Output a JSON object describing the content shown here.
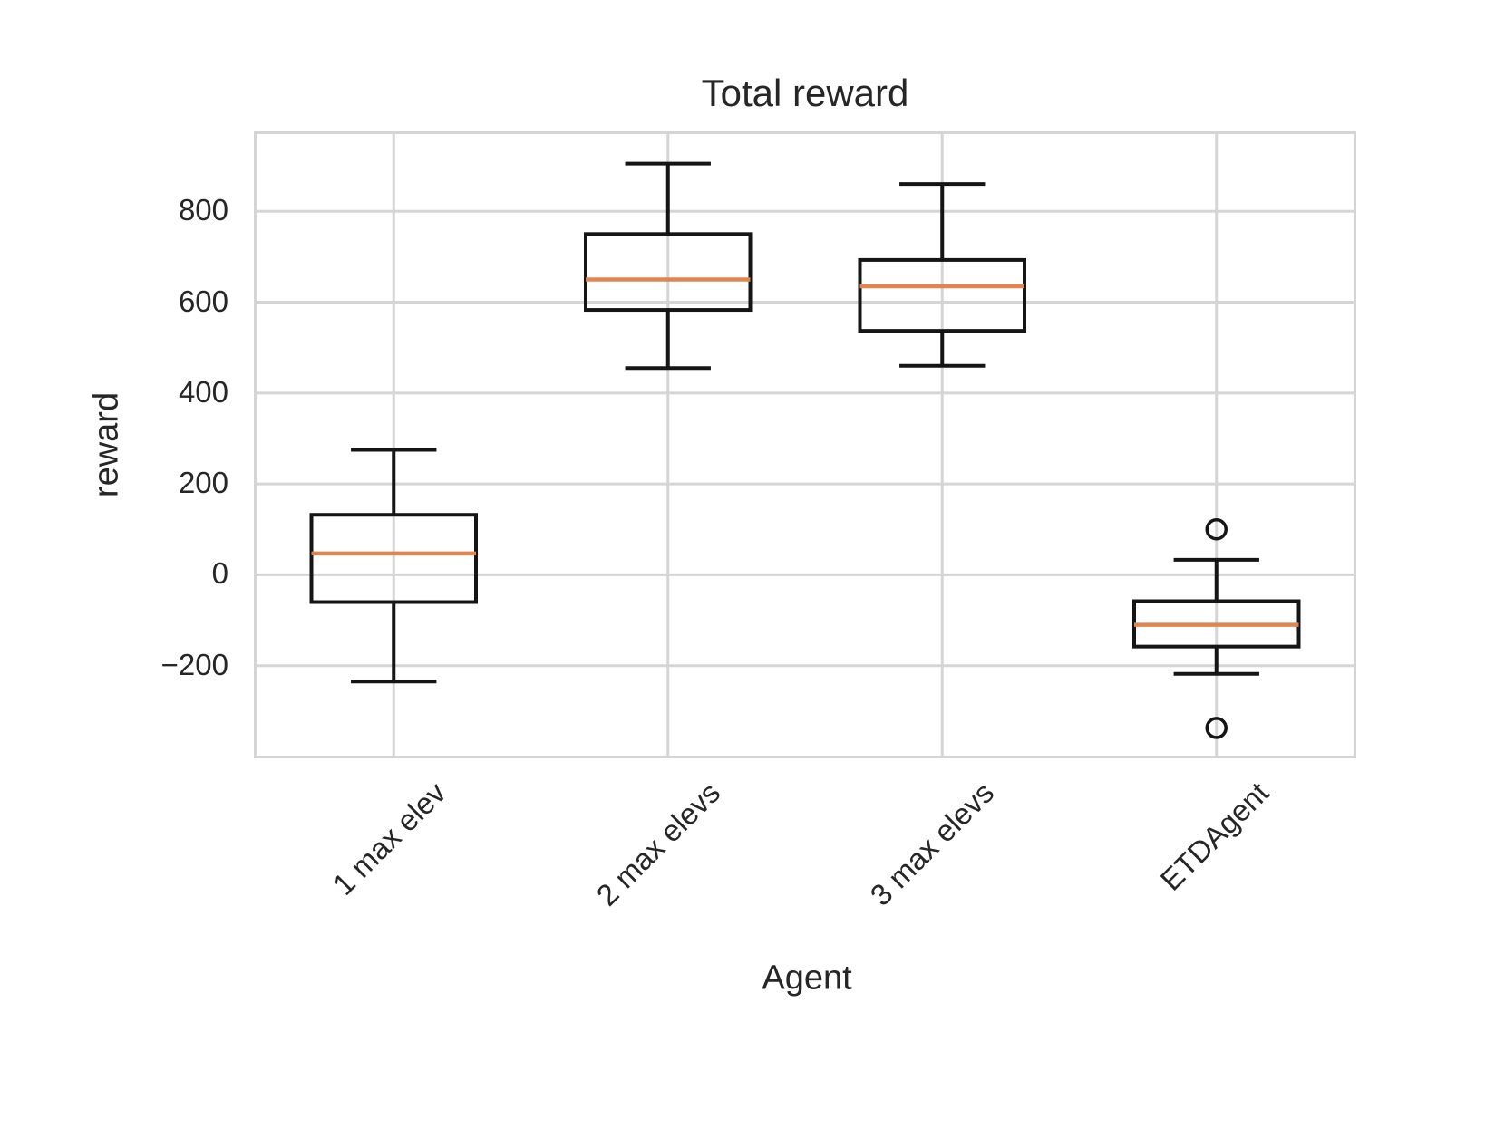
{
  "chart_data": {
    "type": "box",
    "title": "Total reward",
    "xlabel": "Agent",
    "ylabel": "reward",
    "categories": [
      "1 max elev",
      "2 max elevs",
      "3 max elevs",
      "ETDAgent"
    ],
    "ylim": [
      -398,
      970
    ],
    "yticks": [
      800,
      600,
      400,
      200,
      0,
      -200
    ],
    "grid": true,
    "legend": "none",
    "series": [
      {
        "category": "1 max elev",
        "whislo": -235,
        "q1": -60,
        "med": 47,
        "q3": 132,
        "whishi": 275,
        "outliers": []
      },
      {
        "category": "2 max elevs",
        "whislo": 455,
        "q1": 583,
        "med": 650,
        "q3": 750,
        "whishi": 905,
        "outliers": []
      },
      {
        "category": "3 max elevs",
        "whislo": 460,
        "q1": 537,
        "med": 635,
        "q3": 693,
        "whishi": 860,
        "outliers": []
      },
      {
        "category": "ETDAgent",
        "whislo": -218,
        "q1": -158,
        "med": -110,
        "q3": -58,
        "whishi": 33,
        "outliers": [
          100,
          -337
        ]
      }
    ],
    "colors": {
      "box_line": "#151515",
      "median": "#e0854f",
      "grid": "#d5d5d5",
      "text": "#262626",
      "background": "#ffffff"
    }
  }
}
